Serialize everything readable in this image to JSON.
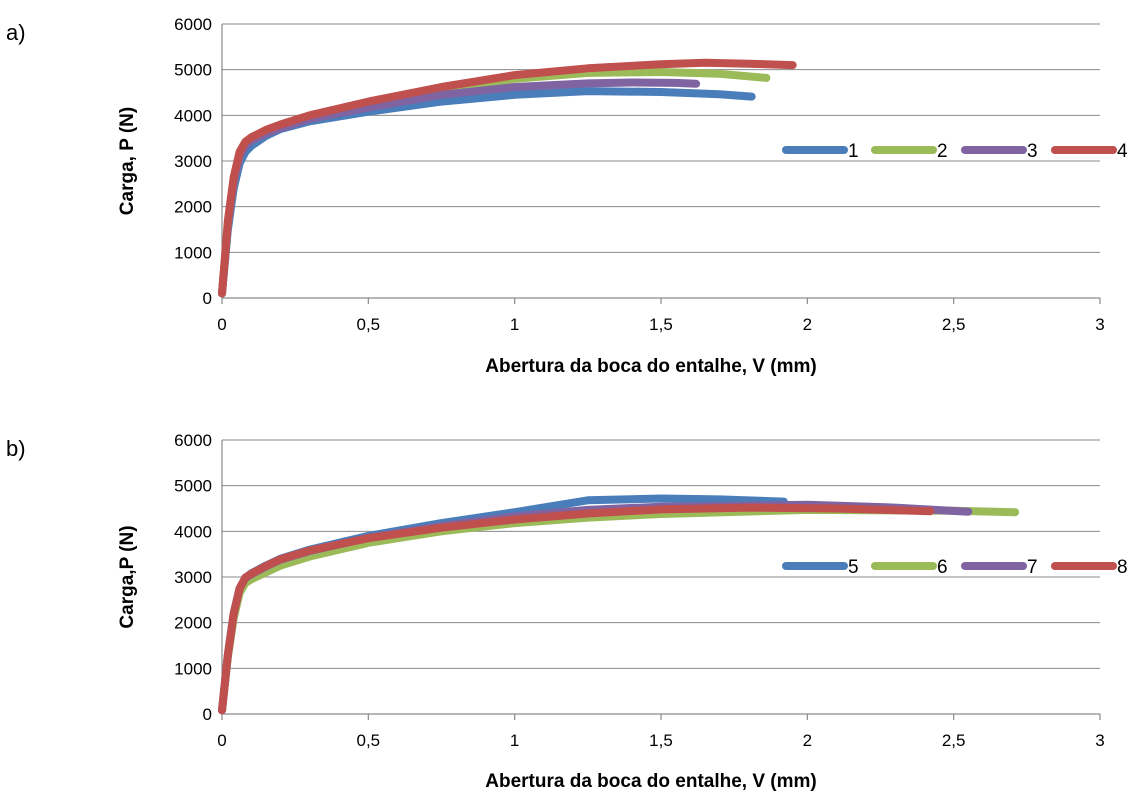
{
  "chart_data": [
    {
      "type": "line",
      "panel_label": "a)",
      "xlabel": "Abertura da boca do entalhe, V (mm)",
      "ylabel": "Carga, P (N)",
      "xlim": [
        0,
        3
      ],
      "ylim": [
        0,
        6000
      ],
      "x_ticks": [
        "0",
        "0,5",
        "1",
        "1,5",
        "2",
        "2,5",
        "3"
      ],
      "y_ticks": [
        "0",
        "1000",
        "2000",
        "3000",
        "4000",
        "5000",
        "6000"
      ],
      "grid": true,
      "legend_position": "right",
      "series": [
        {
          "name": "1",
          "color": "#4a7ebb",
          "x": [
            0,
            0.02,
            0.04,
            0.06,
            0.08,
            0.1,
            0.15,
            0.2,
            0.3,
            0.5,
            0.75,
            1.0,
            1.25,
            1.5,
            1.7,
            1.81
          ],
          "y": [
            100,
            1500,
            2400,
            2950,
            3200,
            3330,
            3550,
            3700,
            3870,
            4080,
            4300,
            4450,
            4530,
            4510,
            4460,
            4410
          ]
        },
        {
          "name": "2",
          "color": "#9bbb59",
          "x": [
            0,
            0.02,
            0.04,
            0.06,
            0.08,
            0.1,
            0.15,
            0.2,
            0.3,
            0.5,
            0.75,
            1.0,
            1.25,
            1.5,
            1.7,
            1.86
          ],
          "y": [
            100,
            1600,
            2550,
            3100,
            3350,
            3450,
            3620,
            3750,
            3940,
            4220,
            4560,
            4800,
            4930,
            4950,
            4910,
            4820
          ]
        },
        {
          "name": "3",
          "color": "#8064a2",
          "x": [
            0,
            0.02,
            0.04,
            0.06,
            0.08,
            0.1,
            0.15,
            0.2,
            0.3,
            0.5,
            0.75,
            1.0,
            1.25,
            1.4,
            1.55,
            1.62
          ],
          "y": [
            100,
            1600,
            2550,
            3100,
            3330,
            3450,
            3600,
            3720,
            3920,
            4170,
            4450,
            4620,
            4700,
            4720,
            4710,
            4690
          ]
        },
        {
          "name": "4",
          "color": "#c0504d",
          "x": [
            0,
            0.02,
            0.04,
            0.06,
            0.08,
            0.1,
            0.15,
            0.2,
            0.3,
            0.5,
            0.75,
            1.0,
            1.25,
            1.5,
            1.65,
            1.8,
            1.95
          ],
          "y": [
            100,
            1700,
            2650,
            3200,
            3420,
            3520,
            3680,
            3800,
            4000,
            4300,
            4620,
            4880,
            5030,
            5120,
            5150,
            5130,
            5100
          ]
        }
      ]
    },
    {
      "type": "line",
      "panel_label": "b)",
      "xlabel": "Abertura da boca do entalhe, V (mm)",
      "ylabel": "Carga,P (N)",
      "xlim": [
        0,
        3
      ],
      "ylim": [
        0,
        6000
      ],
      "x_ticks": [
        "0",
        "0,5",
        "1",
        "1,5",
        "2",
        "2,5",
        "3"
      ],
      "y_ticks": [
        "0",
        "1000",
        "2000",
        "3000",
        "4000",
        "5000",
        "6000"
      ],
      "grid": true,
      "legend_position": "right",
      "series": [
        {
          "name": "5",
          "color": "#4a7ebb",
          "x": [
            0,
            0.02,
            0.04,
            0.06,
            0.08,
            0.1,
            0.15,
            0.2,
            0.3,
            0.5,
            0.75,
            1.0,
            1.25,
            1.5,
            1.7,
            1.92
          ],
          "y": [
            80,
            1300,
            2200,
            2750,
            2980,
            3080,
            3250,
            3400,
            3600,
            3900,
            4180,
            4420,
            4680,
            4720,
            4700,
            4650
          ]
        },
        {
          "name": "6",
          "color": "#9bbb59",
          "x": [
            0,
            0.02,
            0.04,
            0.06,
            0.08,
            0.1,
            0.15,
            0.2,
            0.3,
            0.5,
            0.75,
            1.0,
            1.25,
            1.5,
            2.0,
            2.5,
            2.71
          ],
          "y": [
            80,
            1250,
            2100,
            2650,
            2870,
            2950,
            3100,
            3250,
            3450,
            3750,
            4000,
            4180,
            4300,
            4380,
            4470,
            4450,
            4420
          ]
        },
        {
          "name": "7",
          "color": "#8064a2",
          "x": [
            0,
            0.02,
            0.04,
            0.06,
            0.08,
            0.1,
            0.15,
            0.2,
            0.3,
            0.5,
            0.75,
            1.0,
            1.25,
            1.5,
            2.0,
            2.3,
            2.55
          ],
          "y": [
            80,
            1300,
            2200,
            2750,
            2980,
            3060,
            3230,
            3380,
            3570,
            3860,
            4120,
            4330,
            4470,
            4540,
            4580,
            4520,
            4430
          ]
        },
        {
          "name": "8",
          "color": "#c0504d",
          "x": [
            0,
            0.02,
            0.04,
            0.06,
            0.08,
            0.1,
            0.15,
            0.2,
            0.3,
            0.5,
            0.75,
            1.0,
            1.25,
            1.5,
            1.8,
            2.1,
            2.42
          ],
          "y": [
            80,
            1300,
            2200,
            2750,
            2990,
            3070,
            3240,
            3390,
            3580,
            3850,
            4080,
            4260,
            4390,
            4480,
            4520,
            4500,
            4440
          ]
        }
      ]
    }
  ]
}
